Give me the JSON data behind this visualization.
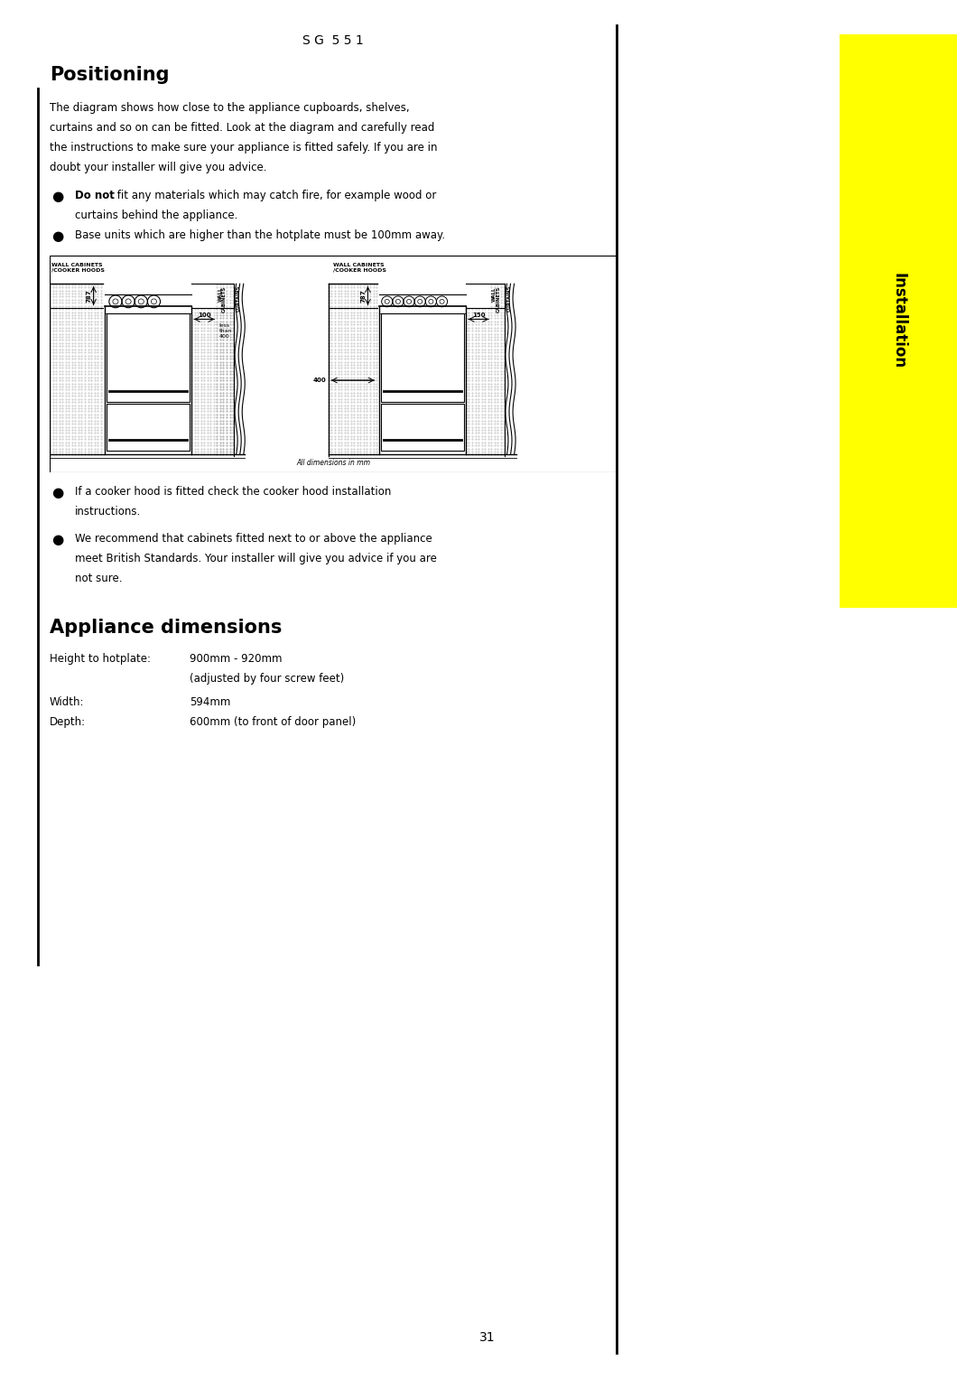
{
  "title": "S G  5 5 1",
  "title_fontsize": 10,
  "section1_title": "Positioning",
  "section1_title_fontsize": 15,
  "section1_body_lines": [
    "The diagram shows how close to the appliance cupboards, shelves,",
    "curtains and so on can be fitted. Look at the diagram and carefully read",
    "the instructions to make sure your appliance is fitted safely. If you are in",
    "doubt your installer will give you advice."
  ],
  "bullet1_bold": "Do not",
  "bullet1_rest": " fit any materials which may catch fire, for example wood or",
  "bullet1_cont": "curtains behind the appliance.",
  "bullet2": "Base units which are higher than the hotplate must be 100mm away.",
  "bullet3a": "If a cooker hood is fitted check the cooker hood installation",
  "bullet3b": "instructions.",
  "bullet4a": "We recommend that cabinets fitted next to or above the appliance",
  "bullet4b": "meet British Standards. Your installer will give you advice if you are",
  "bullet4c": "not sure.",
  "section2_title": "Appliance dimensions",
  "section2_title_fontsize": 15,
  "dim1_label": "Height to hotplate:",
  "dim1_value": "900mm - 920mm",
  "dim1_note": "(adjusted by four screw feet)",
  "dim2_label": "Width:",
  "dim2_value": "594mm",
  "dim3_label": "Depth:",
  "dim3_value": "600mm (to front of door panel)",
  "page_number": "31",
  "tab_text": "Installation",
  "tab_color": "#ffff00",
  "body_fontsize": 8.5,
  "background_color": "#ffffff",
  "text_color": "#000000"
}
